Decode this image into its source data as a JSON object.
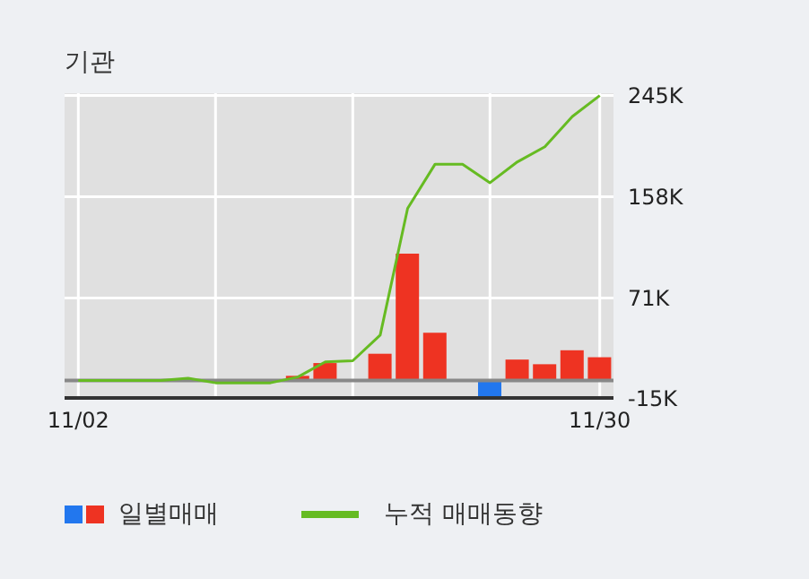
{
  "chart_data": {
    "type": "bar",
    "title": "기관",
    "categories": [
      "11/02",
      null,
      null,
      null,
      null,
      null,
      null,
      null,
      null,
      null,
      null,
      null,
      null,
      null,
      null,
      null,
      null,
      null,
      null,
      "11/30"
    ],
    "series": [
      {
        "name": "일별매매",
        "colors": [
          "#ee3322",
          "#ee3322",
          "#ee3322",
          "#ee3322",
          "#ee3322",
          "#2277ee",
          "#ee3322",
          "#ee3322",
          "#ee3322",
          "#ee3322",
          "#ee3322",
          "#ee3322",
          "#ee3322",
          "#ee3322",
          "#ee3322",
          "#2277ee",
          "#ee3322",
          "#ee3322",
          "#ee3322",
          "#ee3322"
        ],
        "values": [
          0,
          0,
          0,
          0,
          null,
          null,
          0,
          0,
          4000,
          15000,
          0,
          23000,
          109000,
          41000,
          0,
          -15000,
          18000,
          14000,
          26000,
          20000
        ]
      },
      {
        "name": "누적 매매동향",
        "type": "line",
        "color": "#66bb22",
        "values": [
          0,
          0,
          0,
          0,
          2000,
          -2000,
          -2000,
          -2000,
          3000,
          16000,
          17000,
          39000,
          148000,
          186000,
          186000,
          170000,
          188000,
          201000,
          227000,
          245000
        ]
      }
    ],
    "ylim": [
      -15000,
      247000
    ],
    "yticks": [
      {
        "value": -15000,
        "label": "-15K"
      },
      {
        "value": 71000,
        "label": "71K"
      },
      {
        "value": 158000,
        "label": "158K"
      },
      {
        "value": 245000,
        "label": "245K"
      }
    ],
    "ref_lines": [
      {
        "axis": "y",
        "value": 0,
        "color": "#888888"
      }
    ],
    "grid": true,
    "legend": "bottom",
    "marker": "none"
  }
}
